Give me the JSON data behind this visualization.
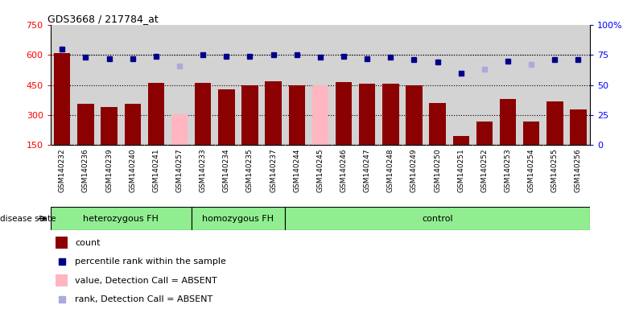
{
  "title": "GDS3668 / 217784_at",
  "samples": [
    "GSM140232",
    "GSM140236",
    "GSM140239",
    "GSM140240",
    "GSM140241",
    "GSM140257",
    "GSM140233",
    "GSM140234",
    "GSM140235",
    "GSM140237",
    "GSM140244",
    "GSM140245",
    "GSM140246",
    "GSM140247",
    "GSM140248",
    "GSM140249",
    "GSM140250",
    "GSM140251",
    "GSM140252",
    "GSM140253",
    "GSM140254",
    "GSM140255",
    "GSM140256"
  ],
  "count_values": [
    610,
    355,
    340,
    355,
    460,
    305,
    460,
    430,
    450,
    470,
    450,
    450,
    465,
    455,
    455,
    450,
    360,
    195,
    270,
    380,
    270,
    370,
    330
  ],
  "count_absent": [
    false,
    false,
    false,
    false,
    false,
    true,
    false,
    false,
    false,
    false,
    false,
    true,
    false,
    false,
    false,
    false,
    false,
    false,
    false,
    false,
    false,
    false,
    false
  ],
  "rank_values_pct": [
    80,
    73,
    72,
    72,
    74,
    66,
    75,
    74,
    74,
    75,
    75,
    73,
    74,
    72,
    73,
    71,
    69,
    60,
    63,
    70,
    67,
    71,
    71
  ],
  "rank_absent": [
    false,
    false,
    false,
    false,
    false,
    true,
    false,
    false,
    false,
    false,
    false,
    false,
    false,
    false,
    false,
    false,
    false,
    false,
    true,
    false,
    true,
    false,
    false
  ],
  "group_boundaries": [
    0,
    6,
    10,
    23
  ],
  "group_labels": [
    "heterozygous FH",
    "homozygous FH",
    "control"
  ],
  "left_ylim": [
    150,
    750
  ],
  "right_ylim": [
    0,
    100
  ],
  "left_yticks": [
    150,
    300,
    450,
    600,
    750
  ],
  "right_yticks": [
    0,
    25,
    50,
    75,
    100
  ],
  "right_yticklabels": [
    "0",
    "25",
    "50",
    "75",
    "100%"
  ],
  "bar_color_dark": "#8B0000",
  "bar_color_absent": "#FFB6C1",
  "dot_color_dark": "#00008B",
  "dot_color_absent": "#AAAADD",
  "bg_color": "#D3D3D3",
  "group_panel_color": "#90EE90",
  "grid_color": "black",
  "tick_label_bg": "#C0C0C0"
}
